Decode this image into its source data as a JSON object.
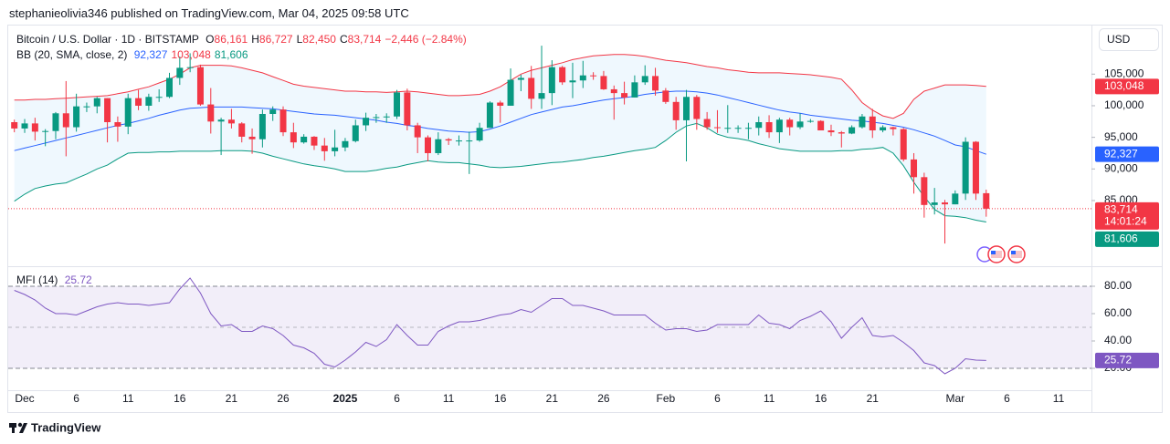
{
  "header": {
    "publisher": "stephanieolivia346 published on TradingView.com, Mar 04, 2025 09:58 UTC"
  },
  "currency": "USD",
  "footer": {
    "brand": "TradingView"
  },
  "chart_data": [
    {
      "type": "candlestick",
      "title": "Bitcoin / U.S. Dollar · 1D · BITSTAMP",
      "ohlc_legend": [
        {
          "key": "O",
          "label": "86,161"
        },
        {
          "key": "H",
          "label": "86,727"
        },
        {
          "key": "L",
          "label": "82,450"
        },
        {
          "key": "C",
          "label": "83,714"
        }
      ],
      "change": "−2,446 (−2.84%)",
      "countdown": "14:01:24",
      "indicator": "BB (20, SMA, close, 2)",
      "up_color": "#089981",
      "down_color": "#f23645",
      "categories": [
        null,
        "Dec",
        null,
        null,
        null,
        null,
        "6",
        null,
        null,
        null,
        null,
        "11",
        null,
        null,
        null,
        null,
        "16",
        null,
        null,
        null,
        null,
        "21",
        null,
        null,
        null,
        null,
        "26",
        null,
        null,
        null,
        null,
        null,
        "2025",
        null,
        null,
        null,
        null,
        "6",
        null,
        null,
        null,
        null,
        "11",
        null,
        null,
        null,
        null,
        "16",
        null,
        null,
        null,
        null,
        "21",
        null,
        null,
        null,
        null,
        "26",
        null,
        null,
        null,
        null,
        null,
        "Feb",
        null,
        null,
        null,
        null,
        "6",
        null,
        null,
        null,
        null,
        "11",
        null,
        null,
        null,
        null,
        "16",
        null,
        null,
        null,
        null,
        "21",
        null,
        null,
        null,
        null,
        null,
        null,
        null,
        "Mar",
        null,
        null,
        null,
        null,
        "6",
        null,
        null,
        null,
        null,
        "11",
        null,
        null,
        null
      ],
      "open": [
        97400,
        96400,
        97200,
        95900,
        96000,
        98800,
        96600,
        99900,
        99900,
        101200,
        97400,
        96700,
        101200,
        100000,
        101400,
        101400,
        104400,
        106000,
        106100,
        100200,
        97500,
        97800,
        97200,
        95100,
        94700,
        98700,
        99400,
        95800,
        94200,
        95100,
        93700,
        92800,
        93400,
        94400,
        96900,
        98100,
        98200,
        98300,
        102100,
        96900,
        95000,
        92500,
        94700,
        94500,
        94500,
        94500,
        96500,
        100500,
        100000,
        104100,
        104400,
        101100,
        102000,
        106100,
        103700,
        104000,
        104800,
        104700,
        102600,
        102000,
        101300,
        103700,
        104700,
        102400,
        100600,
        97700,
        101400,
        97900,
        96600,
        96500,
        96500,
        96500,
        96500,
        97400,
        95800,
        97800,
        96600,
        97500,
        97600,
        96100,
        95800,
        95600,
        96600,
        98300,
        96100,
        96600,
        96300,
        91500,
        88700,
        84300,
        84700,
        84400,
        86100,
        94300,
        86161,
        null,
        null,
        null,
        null,
        null,
        null,
        null,
        null,
        null,
        null
      ],
      "high": [
        97800,
        97900,
        98100,
        96300,
        99000,
        103900,
        101900,
        100500,
        101400,
        101200,
        98300,
        101900,
        102500,
        101900,
        102600,
        105200,
        107800,
        108300,
        106500,
        102800,
        98100,
        99500,
        97400,
        96400,
        99400,
        99900,
        99900,
        97300,
        95500,
        95200,
        94900,
        96200,
        94900,
        97800,
        98900,
        98700,
        98800,
        102500,
        102700,
        97300,
        95300,
        95800,
        94900,
        95300,
        95900,
        97300,
        100700,
        100800,
        105900,
        104900,
        106300,
        109500,
        107200,
        106300,
        106800,
        107100,
        105300,
        105500,
        103200,
        103800,
        104800,
        106400,
        106000,
        102800,
        101400,
        102500,
        101700,
        99000,
        99300,
        100100,
        96900,
        97300,
        98300,
        98500,
        98100,
        98100,
        98800,
        97900,
        97700,
        97000,
        96000,
        96900,
        98700,
        99500,
        96900,
        96700,
        96500,
        92500,
        89400,
        87000,
        85100,
        86600,
        95000,
        94400,
        86727,
        null,
        null,
        null,
        null,
        null,
        null,
        null,
        null,
        null,
        null
      ],
      "low": [
        95800,
        95700,
        94500,
        93600,
        94700,
        92000,
        95900,
        99000,
        98800,
        94200,
        94300,
        95500,
        99300,
        99200,
        100600,
        101200,
        103300,
        105300,
        100000,
        95600,
        92200,
        96400,
        94200,
        92400,
        93400,
        97600,
        95200,
        93300,
        94000,
        93000,
        91300,
        92000,
        92800,
        94200,
        96000,
        97300,
        97300,
        97900,
        96100,
        92500,
        91200,
        92200,
        93800,
        93700,
        89200,
        94300,
        96500,
        97300,
        100000,
        102300,
        99500,
        99500,
        100100,
        103300,
        101200,
        102800,
        104100,
        102500,
        97800,
        100200,
        101300,
        103300,
        101600,
        100300,
        96200,
        91200,
        96200,
        96200,
        95700,
        95700,
        95700,
        94700,
        95300,
        94900,
        94100,
        95300,
        96300,
        97300,
        96100,
        95200,
        93400,
        95500,
        96400,
        94900,
        95800,
        95300,
        91200,
        86100,
        82300,
        82800,
        78200,
        84400,
        85100,
        85100,
        82450,
        null,
        null,
        null,
        null,
        null,
        null,
        null,
        null,
        null,
        null
      ],
      "close": [
        96400,
        97200,
        95900,
        96000,
        98800,
        96600,
        99900,
        99900,
        101200,
        97400,
        96700,
        101200,
        100000,
        101400,
        101400,
        104400,
        106000,
        106100,
        100200,
        97500,
        97800,
        97200,
        95100,
        94700,
        98700,
        99400,
        95800,
        94200,
        95100,
        93700,
        92800,
        93400,
        94400,
        96900,
        98100,
        98200,
        98300,
        102100,
        96900,
        95000,
        92500,
        94700,
        94500,
        94500,
        94500,
        96500,
        100500,
        100000,
        104100,
        104400,
        101100,
        102000,
        106100,
        103700,
        104000,
        104800,
        104700,
        102600,
        102000,
        101300,
        103700,
        104700,
        102400,
        100600,
        97700,
        101400,
        97900,
        96600,
        96500,
        96500,
        96500,
        96500,
        97400,
        95800,
        97800,
        96600,
        97500,
        97600,
        96100,
        95800,
        95600,
        96600,
        98300,
        96100,
        96600,
        96300,
        91500,
        88700,
        84300,
        84700,
        84400,
        86100,
        94300,
        86100,
        83714,
        null,
        null,
        null,
        null,
        null,
        null,
        null,
        null,
        null,
        null
      ],
      "overlays": [
        {
          "color": "#2962ff",
          "last_label": "92,327",
          "values": [
            92900,
            93300,
            93700,
            94100,
            94500,
            94900,
            95300,
            95700,
            96100,
            96500,
            96900,
            97200,
            97600,
            98000,
            98500,
            98900,
            99300,
            99600,
            99700,
            99800,
            99800,
            99800,
            99800,
            99700,
            99600,
            99500,
            99300,
            99100,
            98900,
            98700,
            98600,
            98500,
            98300,
            98100,
            97900,
            97700,
            97400,
            97200,
            96900,
            96700,
            96400,
            96200,
            96000,
            95900,
            95800,
            95900,
            96300,
            96800,
            97400,
            98000,
            98600,
            99000,
            99400,
            99800,
            100000,
            100300,
            100600,
            100900,
            101100,
            101300,
            101500,
            101800,
            102000,
            102200,
            102300,
            102300,
            102200,
            102000,
            101700,
            101300,
            100900,
            100500,
            100100,
            99700,
            99300,
            99000,
            98800,
            98500,
            98300,
            98100,
            97900,
            97700,
            97600,
            97400,
            97200,
            96900,
            96600,
            96200,
            95700,
            95200,
            94500,
            93800,
            93500,
            92900,
            92327,
            null,
            null,
            null,
            null,
            null,
            null,
            null,
            null,
            null,
            null
          ]
        },
        {
          "color": "#f23645",
          "last_label": "103,048",
          "values": [
            100900,
            100900,
            101000,
            101000,
            101100,
            101200,
            101300,
            101400,
            101500,
            101600,
            101900,
            102200,
            102600,
            103000,
            103600,
            104200,
            105000,
            106000,
            106400,
            106400,
            106400,
            106300,
            106000,
            105600,
            105200,
            104600,
            104000,
            103400,
            103100,
            102900,
            102700,
            102500,
            102300,
            102300,
            102200,
            102200,
            102100,
            102200,
            102300,
            102200,
            102000,
            101800,
            101600,
            101600,
            101700,
            101800,
            102300,
            103000,
            104000,
            105000,
            105600,
            106000,
            106400,
            106800,
            107300,
            107600,
            107900,
            108000,
            108100,
            108100,
            108000,
            107800,
            107500,
            107200,
            107000,
            106800,
            106500,
            106200,
            106000,
            105700,
            105500,
            105300,
            105200,
            105200,
            105200,
            105100,
            105000,
            104900,
            104700,
            104500,
            104200,
            102500,
            100500,
            99300,
            98400,
            98000,
            98800,
            101000,
            102300,
            102800,
            103300,
            103300,
            103300,
            103200,
            103048,
            null,
            null,
            null,
            null,
            null,
            null,
            null,
            null,
            null,
            null
          ]
        },
        {
          "color": "#089981",
          "last_label": "81,606",
          "values": [
            84900,
            86000,
            86900,
            87300,
            87600,
            87800,
            88500,
            89200,
            90000,
            90600,
            91600,
            92500,
            92600,
            92600,
            92700,
            92700,
            92800,
            92800,
            92800,
            92800,
            92900,
            92900,
            92900,
            92800,
            92500,
            92000,
            91600,
            91200,
            90800,
            90500,
            90300,
            90000,
            89600,
            89600,
            89600,
            89800,
            90100,
            90300,
            90700,
            91000,
            91300,
            91100,
            91000,
            91000,
            90800,
            90600,
            90300,
            90200,
            90300,
            90400,
            90600,
            90800,
            91000,
            91100,
            91300,
            91500,
            91800,
            92000,
            92300,
            92600,
            92900,
            93100,
            93400,
            94500,
            95800,
            96800,
            97200,
            96500,
            95500,
            95000,
            94800,
            94500,
            94000,
            93600,
            93200,
            93000,
            92800,
            92800,
            92800,
            92800,
            92900,
            92900,
            93100,
            93200,
            93400,
            92500,
            90500,
            87900,
            85600,
            83600,
            82600,
            82500,
            82300,
            81900,
            81606,
            null,
            null,
            null,
            null,
            null,
            null,
            null,
            null,
            null,
            null
          ]
        }
      ],
      "ylim": [
        74900,
        112400
      ],
      "yticks": [
        {
          "value": 85000,
          "label": "85,000"
        },
        {
          "value": 90000,
          "label": "90,000"
        },
        {
          "value": 95000,
          "label": "95,000"
        },
        {
          "value": 100000,
          "label": "100,000"
        },
        {
          "value": 105000,
          "label": "105,000"
        }
      ]
    },
    {
      "type": "line",
      "title": "MFI (14)",
      "last_label": "25.72",
      "color": "#7e57c2",
      "values": [
        77,
        74,
        70,
        64,
        60,
        60,
        59,
        62,
        65,
        67,
        68,
        67,
        67,
        66,
        67,
        68,
        78,
        86,
        75,
        60,
        51,
        52,
        47,
        47,
        51,
        49,
        44,
        37,
        35,
        31,
        23,
        21,
        26,
        32,
        39,
        36,
        41,
        52,
        44,
        37,
        37,
        47,
        51,
        54,
        54,
        55,
        57,
        59,
        60,
        63,
        61,
        66,
        71,
        71,
        66,
        66,
        64,
        62,
        59,
        59,
        59,
        59,
        53,
        48,
        49,
        49,
        47,
        48,
        52,
        52,
        52,
        52,
        59,
        53,
        52,
        49,
        55,
        58,
        62,
        54,
        42,
        50,
        57,
        44,
        43,
        44,
        39,
        33,
        24,
        22,
        16,
        20,
        27,
        26,
        25.72,
        null,
        null,
        null,
        null,
        null,
        null,
        null,
        null,
        null,
        null
      ],
      "bands": [
        80,
        50,
        20
      ],
      "ylim": [
        4,
        92
      ],
      "yticks": [
        {
          "value": 20,
          "label": "20.00"
        },
        {
          "value": 40,
          "label": "40.00"
        },
        {
          "value": 60,
          "label": "60.00"
        },
        {
          "value": 80,
          "label": "80.00"
        }
      ]
    }
  ]
}
